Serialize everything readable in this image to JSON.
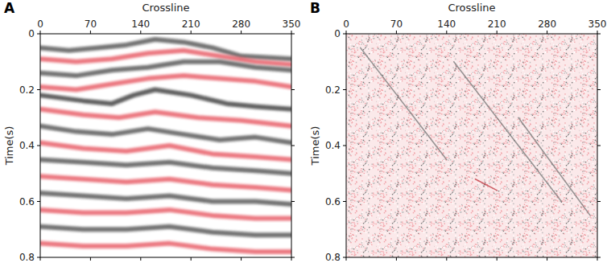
{
  "chart_data": [
    {
      "type": "seismic",
      "title": "A",
      "xlabel": "Crossline",
      "ylabel": "Time(s)",
      "xlim": [
        0,
        350
      ],
      "ylim": [
        0,
        0.8
      ],
      "xticks": [
        0,
        70,
        140,
        210,
        280,
        350
      ],
      "yticks": [
        0,
        0.2,
        0.4,
        0.6,
        0.8
      ],
      "events": [
        {
          "color": "#5a5a5a",
          "x": [
            0,
            40,
            80,
            120,
            160,
            200,
            240,
            280,
            350
          ],
          "y": [
            0.05,
            0.06,
            0.05,
            0.04,
            0.02,
            0.03,
            0.05,
            0.08,
            0.09
          ]
        },
        {
          "color": "#e8606a",
          "x": [
            0,
            50,
            100,
            150,
            200,
            250,
            300,
            350
          ],
          "y": [
            0.09,
            0.1,
            0.09,
            0.07,
            0.06,
            0.08,
            0.1,
            0.11
          ]
        },
        {
          "color": "#5a5a5a",
          "x": [
            0,
            50,
            100,
            150,
            200,
            250,
            300,
            350
          ],
          "y": [
            0.14,
            0.15,
            0.13,
            0.12,
            0.1,
            0.1,
            0.12,
            0.13
          ]
        },
        {
          "color": "#e8606a",
          "x": [
            0,
            50,
            100,
            150,
            200,
            250,
            300,
            350
          ],
          "y": [
            0.19,
            0.2,
            0.18,
            0.16,
            0.15,
            0.16,
            0.17,
            0.19
          ]
        },
        {
          "color": "#444444",
          "x": [
            0,
            60,
            100,
            130,
            160,
            210,
            260,
            300,
            350
          ],
          "y": [
            0.22,
            0.24,
            0.25,
            0.22,
            0.2,
            0.22,
            0.25,
            0.26,
            0.27
          ]
        },
        {
          "color": "#e8606a",
          "x": [
            0,
            60,
            110,
            160,
            220,
            280,
            350
          ],
          "y": [
            0.27,
            0.29,
            0.3,
            0.28,
            0.3,
            0.31,
            0.33
          ]
        },
        {
          "color": "#5a5a5a",
          "x": [
            0,
            50,
            100,
            150,
            200,
            250,
            300,
            350
          ],
          "y": [
            0.33,
            0.35,
            0.36,
            0.34,
            0.36,
            0.38,
            0.37,
            0.39
          ]
        },
        {
          "color": "#e8606a",
          "x": [
            0,
            60,
            120,
            180,
            240,
            300,
            350
          ],
          "y": [
            0.39,
            0.41,
            0.42,
            0.4,
            0.43,
            0.44,
            0.45
          ]
        },
        {
          "color": "#5a5a5a",
          "x": [
            0,
            60,
            120,
            180,
            240,
            300,
            350
          ],
          "y": [
            0.45,
            0.46,
            0.47,
            0.46,
            0.48,
            0.49,
            0.5
          ]
        },
        {
          "color": "#e8606a",
          "x": [
            0,
            60,
            120,
            180,
            240,
            300,
            350
          ],
          "y": [
            0.51,
            0.52,
            0.53,
            0.52,
            0.54,
            0.55,
            0.56
          ]
        },
        {
          "color": "#5a5a5a",
          "x": [
            0,
            60,
            120,
            180,
            240,
            300,
            350
          ],
          "y": [
            0.57,
            0.58,
            0.59,
            0.58,
            0.6,
            0.6,
            0.61
          ]
        },
        {
          "color": "#e8606a",
          "x": [
            0,
            60,
            120,
            180,
            240,
            300,
            350
          ],
          "y": [
            0.63,
            0.64,
            0.64,
            0.63,
            0.65,
            0.66,
            0.66
          ]
        },
        {
          "color": "#5a5a5a",
          "x": [
            0,
            60,
            120,
            180,
            240,
            300,
            350
          ],
          "y": [
            0.69,
            0.7,
            0.7,
            0.69,
            0.71,
            0.72,
            0.72
          ]
        },
        {
          "color": "#e8606a",
          "x": [
            0,
            60,
            120,
            180,
            240,
            300,
            350
          ],
          "y": [
            0.75,
            0.76,
            0.76,
            0.75,
            0.77,
            0.78,
            0.78
          ]
        }
      ]
    },
    {
      "type": "seismic",
      "title": "B",
      "xlabel": "Crossline",
      "ylabel": "Time(s)",
      "xlim": [
        0,
        350
      ],
      "ylim": [
        0,
        0.8
      ],
      "xticks": [
        0,
        70,
        140,
        210,
        280,
        350
      ],
      "yticks": [
        0,
        0.2,
        0.4,
        0.6,
        0.8
      ],
      "events": [
        {
          "color": "#777777",
          "x": [
            20,
            140
          ],
          "y": [
            0.05,
            0.45
          ]
        },
        {
          "color": "#777777",
          "x": [
            150,
            300
          ],
          "y": [
            0.1,
            0.6
          ]
        },
        {
          "color": "#777777",
          "x": [
            240,
            340
          ],
          "y": [
            0.3,
            0.65
          ]
        },
        {
          "color": "#c0303a",
          "x": [
            180,
            210
          ],
          "y": [
            0.52,
            0.56
          ]
        }
      ]
    }
  ]
}
